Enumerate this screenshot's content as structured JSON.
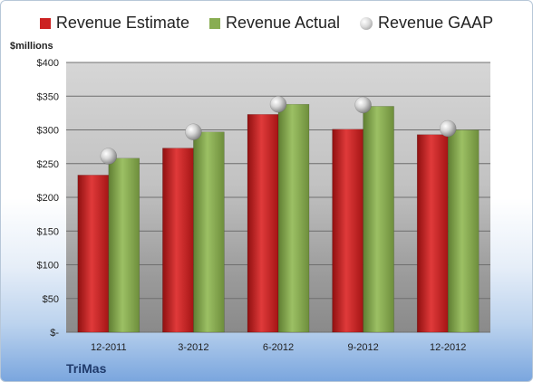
{
  "chart_data": {
    "type": "bar",
    "categories": [
      "12-2011",
      "3-2012",
      "6-2012",
      "9-2012",
      "12-2012"
    ],
    "series": [
      {
        "name": "Revenue Estimate",
        "kind": "bar",
        "color": "#cc2222",
        "values": [
          233,
          273,
          323,
          301,
          293
        ]
      },
      {
        "name": "Revenue Actual",
        "kind": "bar",
        "color": "#89ad52",
        "values": [
          258,
          297,
          338,
          335,
          300
        ]
      },
      {
        "name": "Revenue GAAP",
        "kind": "marker",
        "color": "#b0b0b0",
        "values": [
          261,
          297,
          338,
          337,
          302
        ]
      }
    ],
    "ylabel": "$millions",
    "ylim": [
      0,
      400
    ],
    "yticks": [
      0,
      50,
      100,
      150,
      200,
      250,
      300,
      350,
      400
    ],
    "ytick_labels": [
      "$-",
      "$50",
      "$100",
      "$150",
      "$200",
      "$250",
      "$300",
      "$350",
      "$400"
    ],
    "grid": true,
    "legend_position": "top"
  },
  "legend": {
    "estimate": "Revenue Estimate",
    "actual": "Revenue Actual",
    "gaap": "Revenue GAAP"
  },
  "unit_label": "$millions",
  "company": "TriMas"
}
